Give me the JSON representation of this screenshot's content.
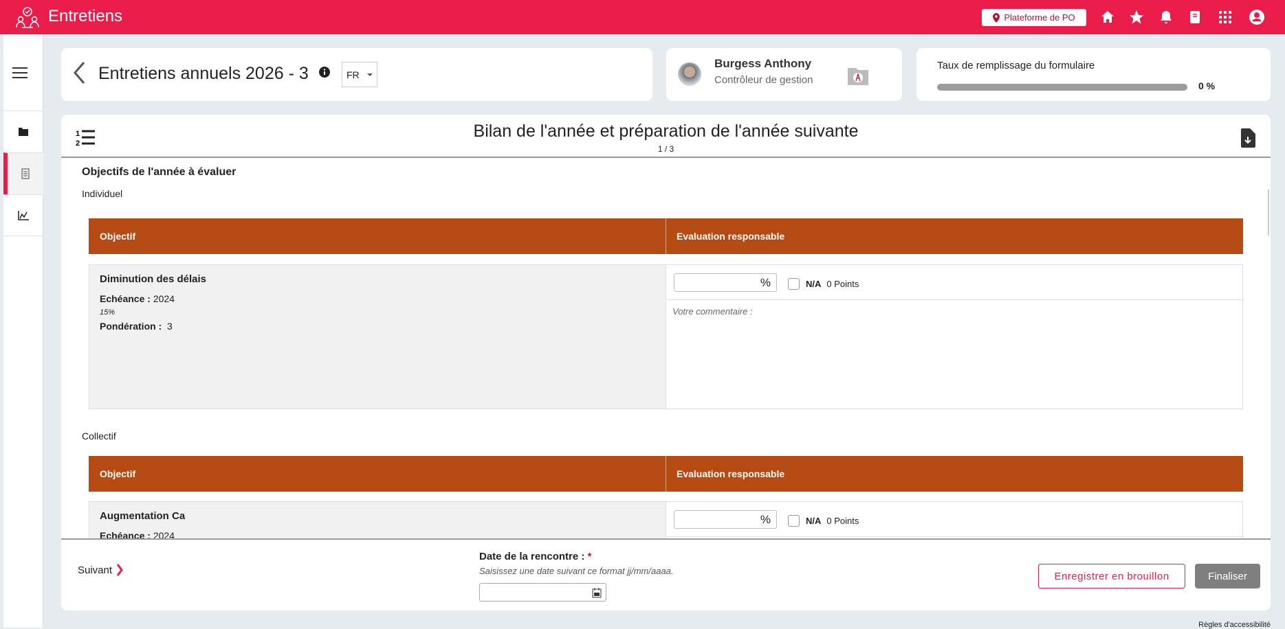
{
  "app": {
    "title": "Entretiens",
    "platform_label": "Plateforme de PO",
    "brand_color": "#e91c4a"
  },
  "topbar_icons": [
    "home-icon",
    "star-icon",
    "bell-icon",
    "book-icon",
    "apps-grid-icon",
    "user-account-icon"
  ],
  "sidebar": {
    "items": [
      {
        "icon": "folder-icon"
      },
      {
        "icon": "clipboard-icon",
        "active": true
      },
      {
        "icon": "chart-line-icon"
      }
    ]
  },
  "header": {
    "title": "Entretiens annuels 2026 - 3",
    "language": "FR"
  },
  "employee": {
    "name": "Burgess Anthony",
    "role": "Contrôleur de gestion"
  },
  "progress": {
    "label": "Taux de remplissage du formulaire",
    "value_text": "0 %",
    "value": 0
  },
  "section": {
    "title": "Bilan de l'année et préparation de l'année suivante",
    "page": "1 / 3"
  },
  "objectives": {
    "title": "Objectifs de l'année à évaluer",
    "col_objective": "Objectif",
    "col_eval": "Evaluation responsable",
    "pct_unit": "%",
    "na_label": "N/A",
    "comment_placeholder": "Votre commentaire :",
    "echeance_label": "Echéance :",
    "ponderation_label": "Pondération :",
    "groups": [
      {
        "label": "Individuel",
        "items": [
          {
            "name": "Diminution des délais",
            "echeance": "2024",
            "target": "15%",
            "ponderation": "3",
            "points": "0 Points"
          }
        ]
      },
      {
        "label": "Collectif",
        "items": [
          {
            "name": "Augmentation Ca",
            "echeance": "2024",
            "points": "0 Points"
          }
        ]
      }
    ]
  },
  "footer": {
    "next_label": "Suivant",
    "date_label": "Date de la rencontre :",
    "required_mark": "*",
    "date_hint": "Saisissez une date suivant ce format jj/mm/aaaa.",
    "date_value": "",
    "draft_button": "Enregistrer en brouillon",
    "finalize_button": "Finaliser"
  },
  "accessibility_link": "Règles d'accessibilité"
}
